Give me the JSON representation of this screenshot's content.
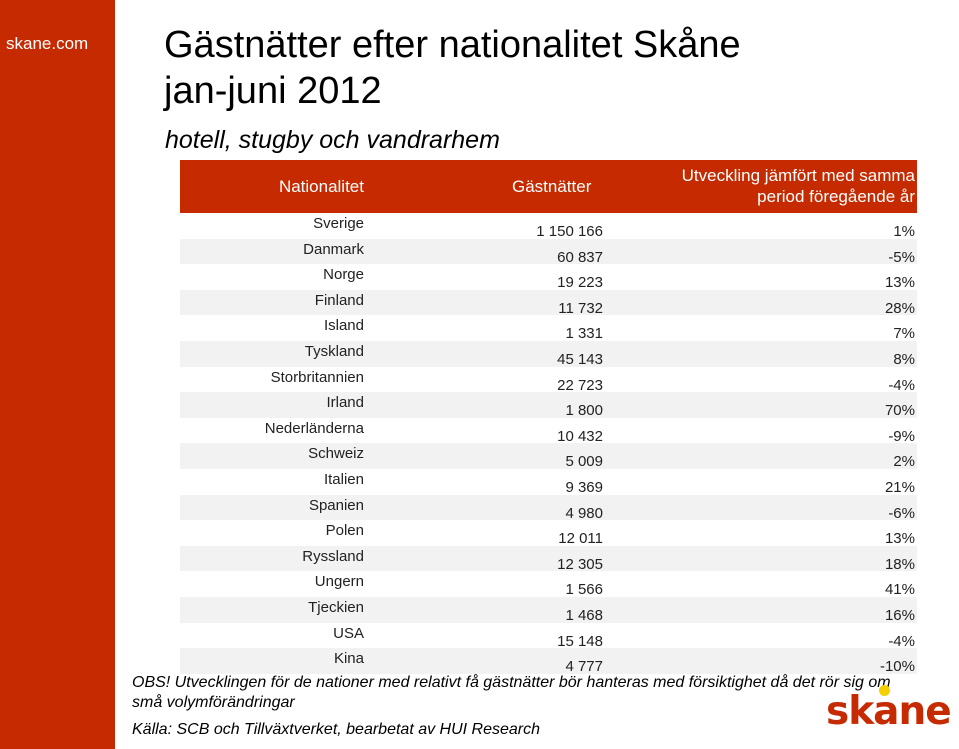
{
  "sidebar": {
    "brand": "skane.com"
  },
  "header": {
    "title_line1": "Gästnätter efter nationalitet Skåne",
    "title_line2": "jan-juni 2012",
    "subtitle": "hotell, stugby och vandrarhem"
  },
  "table": {
    "headers": {
      "nationality": "Nationalitet",
      "nights": "Gästnätter",
      "change_line1": "Utveckling jämfört med samma",
      "change_line2": "period föregående år"
    },
    "rows": [
      {
        "country": "Sverige",
        "nights": "1 150 166",
        "change": "1%"
      },
      {
        "country": "Danmark",
        "nights": "60 837",
        "change": "-5%"
      },
      {
        "country": "Norge",
        "nights": "19 223",
        "change": "13%"
      },
      {
        "country": "Finland",
        "nights": "11 732",
        "change": "28%"
      },
      {
        "country": "Island",
        "nights": "1 331",
        "change": "7%"
      },
      {
        "country": "Tyskland",
        "nights": "45 143",
        "change": "8%"
      },
      {
        "country": "Storbritannien",
        "nights": "22 723",
        "change": "-4%"
      },
      {
        "country": "Irland",
        "nights": "1 800",
        "change": "70%"
      },
      {
        "country": "Nederländerna",
        "nights": "10 432",
        "change": "-9%"
      },
      {
        "country": "Schweiz",
        "nights": "5 009",
        "change": "2%"
      },
      {
        "country": "Italien",
        "nights": "9 369",
        "change": "21%"
      },
      {
        "country": "Spanien",
        "nights": "4 980",
        "change": "-6%"
      },
      {
        "country": "Polen",
        "nights": "12 011",
        "change": "13%"
      },
      {
        "country": "Ryssland",
        "nights": "12 305",
        "change": "18%"
      },
      {
        "country": "Ungern",
        "nights": "1 566",
        "change": "41%"
      },
      {
        "country": "Tjeckien",
        "nights": "1 468",
        "change": "16%"
      },
      {
        "country": "USA",
        "nights": "15 148",
        "change": "-4%"
      },
      {
        "country": "Kina",
        "nights": "4 777",
        "change": "-10%"
      }
    ]
  },
  "note": "OBS! Utvecklingen för de nationer med relativt få gästnätter bör hanteras med försiktighet då det rör sig om små volymförändringar",
  "source": "Källa: SCB och Tillväxtverket, bearbetat av HUI Research",
  "logo": {
    "text": "skane"
  },
  "colors": {
    "accent": "#c62a00",
    "logo_dot": "#f5d000",
    "row_shade": "#f2f2f2"
  }
}
